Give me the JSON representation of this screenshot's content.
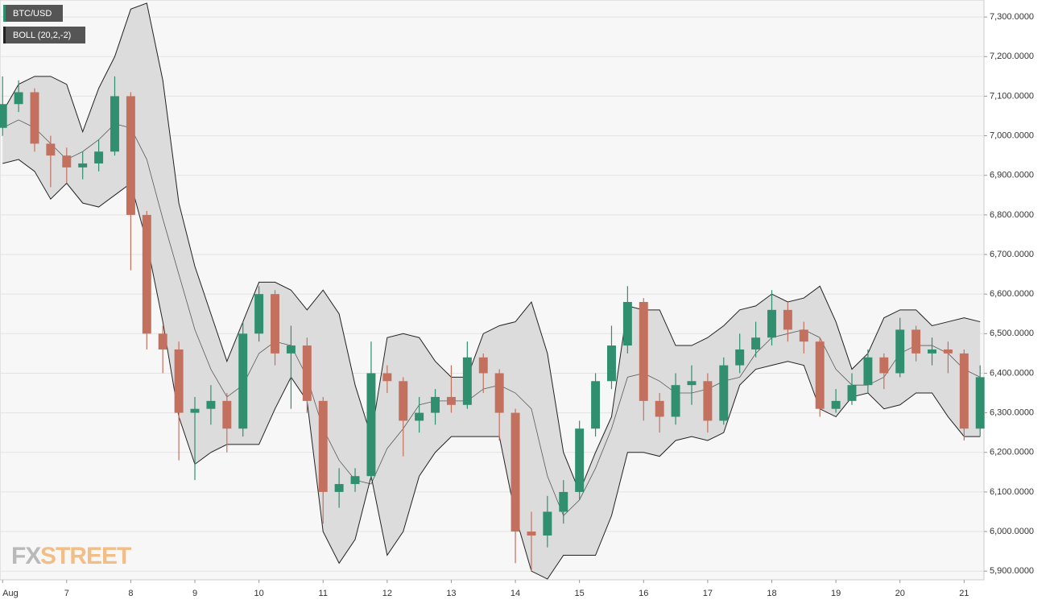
{
  "chart_data": {
    "type": "candlestick",
    "symbol": "BTC/USD",
    "indicator": "BOLL (20,2,-2)",
    "watermark": {
      "prefix": "FX",
      "suffix": "STREET"
    },
    "up_color": "#2f8f6f",
    "down_color": "#c4705f",
    "band_fill": "#dcdcdc",
    "band_color": "#222222",
    "grid": true,
    "x": [
      6,
      6.25,
      6.5,
      6.75,
      7,
      7.25,
      7.5,
      7.75,
      8,
      8.25,
      8.5,
      8.75,
      9,
      9.25,
      9.5,
      9.75,
      10,
      10.25,
      10.5,
      10.75,
      11,
      11.25,
      11.5,
      11.75,
      12,
      12.25,
      12.5,
      12.75,
      13,
      13.25,
      13.5,
      13.75,
      14,
      14.25,
      14.5,
      14.75,
      15,
      15.25,
      15.5,
      15.75,
      16,
      16.25,
      16.5,
      16.75,
      17,
      17.25,
      17.5,
      17.75,
      18,
      18.25,
      18.5,
      18.75,
      19,
      19.25,
      19.5,
      19.75,
      20,
      20.25,
      20.5,
      20.75,
      21,
      21.25
    ],
    "open": [
      7020,
      7080,
      7110,
      6980,
      6950,
      6920,
      6930,
      6960,
      7100,
      6800,
      6500,
      6460,
      6300,
      6310,
      6330,
      6260,
      6500,
      6600,
      6450,
      6470,
      6330,
      6100,
      6120,
      6140,
      6400,
      6380,
      6280,
      6300,
      6340,
      6320,
      6440,
      6400,
      6300,
      6000,
      5990,
      6050,
      6100,
      6260,
      6380,
      6470,
      6580,
      6330,
      6290,
      6370,
      6380,
      6280,
      6420,
      6460,
      6490,
      6560,
      6510,
      6480,
      6310,
      6330,
      6370,
      6440,
      6400,
      6510,
      6450,
      6460,
      6450,
      6260
    ],
    "high": [
      7150,
      7140,
      7120,
      7000,
      6970,
      6960,
      6990,
      7150,
      7110,
      6810,
      6520,
      6480,
      6340,
      6370,
      6350,
      6530,
      6620,
      6610,
      6520,
      6490,
      6340,
      6160,
      6160,
      6480,
      6420,
      6390,
      6340,
      6360,
      6420,
      6480,
      6450,
      6410,
      6310,
      6050,
      6090,
      6130,
      6280,
      6400,
      6520,
      6620,
      6590,
      6350,
      6400,
      6420,
      6400,
      6440,
      6500,
      6530,
      6610,
      6580,
      6530,
      6490,
      6360,
      6400,
      6460,
      6450,
      6540,
      6520,
      6490,
      6480,
      6460,
      6420
    ],
    "low": [
      7000,
      7060,
      6960,
      6870,
      6880,
      6890,
      6910,
      6950,
      6660,
      6460,
      6400,
      6180,
      6130,
      6270,
      6200,
      6240,
      6480,
      6420,
      6310,
      6300,
      6020,
      6060,
      6100,
      6130,
      6350,
      6190,
      6250,
      6270,
      6300,
      6310,
      6350,
      6230,
      5920,
      5900,
      5960,
      6020,
      6080,
      6240,
      6360,
      6450,
      6280,
      6250,
      6270,
      6320,
      6250,
      6270,
      6400,
      6440,
      6470,
      6480,
      6450,
      6290,
      6300,
      6320,
      6350,
      6360,
      6390,
      6430,
      6420,
      6400,
      6230,
      6240
    ],
    "close": [
      7080,
      7110,
      6980,
      6950,
      6920,
      6930,
      6960,
      7100,
      6800,
      6500,
      6460,
      6300,
      6310,
      6330,
      6260,
      6500,
      6600,
      6450,
      6470,
      6330,
      6100,
      6120,
      6140,
      6400,
      6380,
      6280,
      6300,
      6340,
      6320,
      6440,
      6400,
      6300,
      6000,
      5990,
      6050,
      6100,
      6260,
      6380,
      6470,
      6580,
      6330,
      6290,
      6370,
      6380,
      6280,
      6420,
      6460,
      6490,
      6560,
      6510,
      6480,
      6310,
      6330,
      6370,
      6440,
      6400,
      6510,
      6450,
      6460,
      6450,
      6260,
      6390
    ],
    "upper": [
      7060,
      7130,
      7150,
      7150,
      7130,
      7010,
      7120,
      7200,
      7320,
      7335,
      7140,
      6830,
      6670,
      6550,
      6430,
      6530,
      6630,
      6630,
      6610,
      6560,
      6610,
      6550,
      6370,
      6240,
      6490,
      6500,
      6490,
      6430,
      6390,
      6390,
      6500,
      6520,
      6530,
      6580,
      6450,
      6200,
      6100,
      6200,
      6290,
      6570,
      6560,
      6560,
      6470,
      6470,
      6490,
      6520,
      6560,
      6570,
      6600,
      6580,
      6590,
      6620,
      6530,
      6410,
      6450,
      6540,
      6560,
      6560,
      6520,
      6530,
      6540,
      6530
    ],
    "middle": [
      7020,
      7040,
      7020,
      6980,
      6940,
      6960,
      6990,
      7030,
      7020,
      6940,
      6790,
      6650,
      6510,
      6410,
      6340,
      6370,
      6450,
      6480,
      6470,
      6390,
      6260,
      6180,
      6130,
      6120,
      6210,
      6260,
      6320,
      6330,
      6330,
      6330,
      6360,
      6370,
      6350,
      6310,
      6140,
      6040,
      6080,
      6160,
      6260,
      6390,
      6400,
      6380,
      6350,
      6350,
      6360,
      6380,
      6390,
      6450,
      6490,
      6500,
      6510,
      6490,
      6410,
      6370,
      6370,
      6390,
      6450,
      6470,
      6470,
      6450,
      6410,
      6390
    ],
    "lower": [
      6930,
      6940,
      6910,
      6840,
      6880,
      6830,
      6820,
      6850,
      6880,
      6730,
      6530,
      6290,
      6170,
      6200,
      6220,
      6220,
      6220,
      6310,
      6390,
      6330,
      6000,
      5920,
      5980,
      6140,
      5940,
      6000,
      6140,
      6200,
      6240,
      6240,
      6240,
      6240,
      6040,
      5900,
      5880,
      5940,
      5940,
      5940,
      6040,
      6200,
      6200,
      6190,
      6230,
      6240,
      6230,
      6250,
      6370,
      6410,
      6420,
      6430,
      6420,
      6310,
      6290,
      6340,
      6350,
      6310,
      6320,
      6350,
      6350,
      6290,
      6240,
      6240
    ],
    "xlim": [
      5.96,
      21.31
    ],
    "ylim": [
      5878,
      7343
    ],
    "xticks": [
      {
        "value": 6,
        "label": "Aug"
      },
      7,
      8,
      9,
      10,
      11,
      12,
      13,
      14,
      15,
      16,
      17,
      18,
      19,
      20,
      21
    ],
    "yticks": [
      {
        "value": 5900,
        "label": "5,900.0000"
      },
      {
        "value": 6000,
        "label": "6,000.0000"
      },
      {
        "value": 6100,
        "label": "6,100.0000"
      },
      {
        "value": 6200,
        "label": "6,200.0000"
      },
      {
        "value": 6300,
        "label": "6,300.0000"
      },
      {
        "value": 6400,
        "label": "6,400.0000"
      },
      {
        "value": 6500,
        "label": "6,500.0000"
      },
      {
        "value": 6600,
        "label": "6,600.0000"
      },
      {
        "value": 6700,
        "label": "6,700.0000"
      },
      {
        "value": 6800,
        "label": "6,800.0000"
      },
      {
        "value": 6900,
        "label": "6,900.0000"
      },
      {
        "value": 7000,
        "label": "7,000.0000"
      },
      {
        "value": 7100,
        "label": "7,100.0000"
      },
      {
        "value": 7200,
        "label": "7,200.0000"
      },
      {
        "value": 7300,
        "label": "7,300.0000"
      }
    ]
  }
}
